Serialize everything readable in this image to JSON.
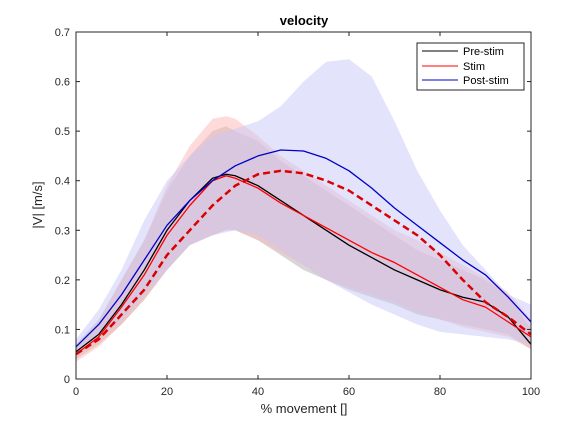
{
  "chart_data": {
    "type": "line",
    "title": "velocity",
    "xlabel": "% movement []",
    "ylabel": "|V| [m/s]",
    "xlim": [
      0,
      100
    ],
    "ylim": [
      0,
      0.7
    ],
    "xticks": [
      0,
      20,
      40,
      60,
      80,
      100
    ],
    "yticks": [
      0,
      0.1,
      0.2,
      0.3,
      0.4,
      0.5,
      0.6,
      0.7
    ],
    "ytick_labels": [
      "0",
      "0.1",
      "0.2",
      "0.3",
      "0.4",
      "0.5",
      "0.6",
      "0.7"
    ],
    "grid": false,
    "legend_location": "top-right",
    "series": [
      {
        "name": "Pre-stim",
        "color": "#000000",
        "style": "solid",
        "band_color": "#b0b0b0",
        "x": [
          0,
          5,
          10,
          15,
          20,
          25,
          30,
          33,
          35,
          40,
          45,
          50,
          55,
          60,
          65,
          70,
          75,
          80,
          85,
          90,
          95,
          100
        ],
        "values": [
          0.055,
          0.09,
          0.15,
          0.22,
          0.3,
          0.36,
          0.405,
          0.413,
          0.41,
          0.39,
          0.36,
          0.33,
          0.3,
          0.27,
          0.245,
          0.22,
          0.2,
          0.18,
          0.165,
          0.155,
          0.125,
          0.07
        ],
        "band_low": [
          0.04,
          0.07,
          0.11,
          0.16,
          0.22,
          0.27,
          0.29,
          0.3,
          0.3,
          0.28,
          0.25,
          0.22,
          0.2,
          0.18,
          0.165,
          0.15,
          0.13,
          0.12,
          0.11,
          0.1,
          0.09,
          0.06
        ],
        "band_high": [
          0.07,
          0.12,
          0.2,
          0.28,
          0.38,
          0.45,
          0.5,
          0.51,
          0.5,
          0.48,
          0.44,
          0.41,
          0.38,
          0.35,
          0.32,
          0.29,
          0.26,
          0.24,
          0.22,
          0.2,
          0.17,
          0.1
        ]
      },
      {
        "name": "Stim",
        "color": "#ff0000",
        "style": "solid",
        "band_color": "#ffb6b6",
        "x": [
          0,
          5,
          10,
          15,
          20,
          25,
          30,
          33,
          35,
          40,
          45,
          50,
          55,
          60,
          65,
          70,
          75,
          80,
          85,
          90,
          95,
          100
        ],
        "values": [
          0.05,
          0.085,
          0.145,
          0.21,
          0.29,
          0.35,
          0.4,
          0.41,
          0.405,
          0.385,
          0.355,
          0.33,
          0.305,
          0.28,
          0.255,
          0.235,
          0.21,
          0.185,
          0.16,
          0.145,
          0.115,
          0.085
        ],
        "band_low": [
          0.035,
          0.065,
          0.11,
          0.16,
          0.22,
          0.27,
          0.29,
          0.3,
          0.3,
          0.28,
          0.255,
          0.23,
          0.2,
          0.185,
          0.17,
          0.155,
          0.135,
          0.12,
          0.105,
          0.095,
          0.085,
          0.06
        ],
        "band_high": [
          0.065,
          0.115,
          0.2,
          0.28,
          0.39,
          0.47,
          0.525,
          0.53,
          0.525,
          0.49,
          0.45,
          0.42,
          0.39,
          0.36,
          0.33,
          0.3,
          0.28,
          0.255,
          0.23,
          0.205,
          0.175,
          0.12
        ]
      },
      {
        "name": "Post-stim",
        "color": "#0000c8",
        "style": "solid",
        "band_color": "#c8c8f8",
        "x": [
          0,
          5,
          10,
          15,
          20,
          25,
          30,
          35,
          40,
          45,
          50,
          55,
          60,
          65,
          70,
          75,
          80,
          85,
          90,
          95,
          100
        ],
        "values": [
          0.065,
          0.11,
          0.17,
          0.24,
          0.31,
          0.36,
          0.4,
          0.43,
          0.45,
          0.462,
          0.46,
          0.445,
          0.42,
          0.385,
          0.345,
          0.31,
          0.275,
          0.24,
          0.21,
          0.165,
          0.115
        ],
        "band_low": [
          0.05,
          0.08,
          0.12,
          0.17,
          0.22,
          0.27,
          0.29,
          0.3,
          0.29,
          0.26,
          0.23,
          0.2,
          0.175,
          0.15,
          0.13,
          0.11,
          0.095,
          0.09,
          0.085,
          0.08,
          0.07
        ],
        "band_high": [
          0.08,
          0.14,
          0.22,
          0.32,
          0.4,
          0.45,
          0.49,
          0.505,
          0.52,
          0.55,
          0.6,
          0.64,
          0.645,
          0.61,
          0.52,
          0.42,
          0.34,
          0.27,
          0.22,
          0.17,
          0.15
        ]
      },
      {
        "name": "",
        "color": "#dc0000",
        "style": "dashed",
        "x": [
          0,
          5,
          10,
          15,
          20,
          25,
          30,
          35,
          40,
          45,
          50,
          55,
          60,
          65,
          70,
          75,
          80,
          85,
          90,
          95,
          100
        ],
        "values": [
          0.05,
          0.08,
          0.13,
          0.18,
          0.25,
          0.3,
          0.35,
          0.39,
          0.413,
          0.42,
          0.415,
          0.4,
          0.38,
          0.35,
          0.32,
          0.29,
          0.25,
          0.2,
          0.155,
          0.125,
          0.09
        ]
      }
    ]
  }
}
